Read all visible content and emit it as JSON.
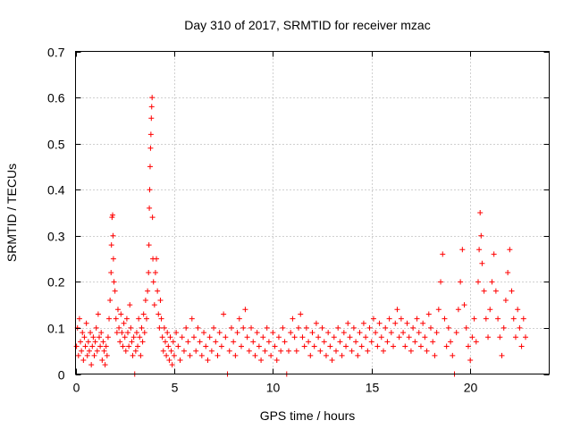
{
  "chart_data": {
    "type": "scatter",
    "title": "Day 310 of 2017, SRMTID for receiver mzac",
    "xlabel": "GPS time / hours",
    "ylabel": "SRMTID / TECUs",
    "xlim": [
      0,
      24
    ],
    "ylim": [
      0,
      0.7
    ],
    "xticks": [
      0,
      5,
      10,
      15,
      20
    ],
    "yticks": [
      0,
      0.1,
      0.2,
      0.3,
      0.4,
      0.5,
      0.6,
      0.7
    ],
    "xtick_labels": [
      "0",
      "5",
      "10",
      "15",
      "20"
    ],
    "ytick_labels": [
      "0",
      "0.1",
      "0.2",
      "0.3",
      "0.4",
      "0.5",
      "0.6",
      "0.7"
    ],
    "grid": true,
    "marker": "+",
    "color": "#ff0000",
    "series": [
      {
        "name": "SRMTID",
        "points": [
          [
            0.05,
            0.06
          ],
          [
            0.1,
            0.1
          ],
          [
            0.15,
            0.04
          ],
          [
            0.2,
            0.12
          ],
          [
            0.25,
            0.07
          ],
          [
            0.3,
            0.05
          ],
          [
            0.35,
            0.09
          ],
          [
            0.4,
            0.03
          ],
          [
            0.45,
            0.08
          ],
          [
            0.5,
            0.06
          ],
          [
            0.55,
            0.11
          ],
          [
            0.6,
            0.04
          ],
          [
            0.65,
            0.07
          ],
          [
            0.7,
            0.05
          ],
          [
            0.75,
            0.09
          ],
          [
            0.8,
            0.02
          ],
          [
            0.85,
            0.06
          ],
          [
            0.9,
            0.08
          ],
          [
            0.95,
            0.04
          ],
          [
            1.0,
            0.07
          ],
          [
            1.05,
            0.1
          ],
          [
            1.1,
            0.05
          ],
          [
            1.15,
            0.13
          ],
          [
            1.2,
            0.08
          ],
          [
            1.25,
            0.06
          ],
          [
            1.3,
            0.09
          ],
          [
            1.35,
            0.03
          ],
          [
            1.4,
            0.07
          ],
          [
            1.45,
            0.05
          ],
          [
            1.5,
            0.02
          ],
          [
            1.55,
            0.06
          ],
          [
            1.6,
            0.04
          ],
          [
            1.65,
            0.08
          ],
          [
            1.7,
            0.12
          ],
          [
            1.75,
            0.16
          ],
          [
            1.8,
            0.22
          ],
          [
            1.82,
            0.28
          ],
          [
            1.85,
            0.34
          ],
          [
            1.88,
            0.345
          ],
          [
            1.9,
            0.3
          ],
          [
            1.92,
            0.25
          ],
          [
            1.95,
            0.2
          ],
          [
            2.0,
            0.18
          ],
          [
            2.05,
            0.12
          ],
          [
            2.1,
            0.09
          ],
          [
            2.15,
            0.14
          ],
          [
            2.2,
            0.1
          ],
          [
            2.25,
            0.07
          ],
          [
            2.3,
            0.13
          ],
          [
            2.35,
            0.09
          ],
          [
            2.4,
            0.06
          ],
          [
            2.45,
            0.11
          ],
          [
            2.5,
            0.08
          ],
          [
            2.55,
            0.05
          ],
          [
            2.6,
            0.12
          ],
          [
            2.65,
            0.09
          ],
          [
            2.7,
            0.06
          ],
          [
            2.75,
            0.15
          ],
          [
            2.8,
            0.1
          ],
          [
            2.85,
            0.07
          ],
          [
            2.9,
            0.04
          ],
          [
            2.95,
            0.08
          ],
          [
            3.0,
            0.0
          ],
          [
            3.05,
            0.05
          ],
          [
            3.1,
            0.09
          ],
          [
            3.15,
            0.06
          ],
          [
            3.2,
            0.12
          ],
          [
            3.25,
            0.08
          ],
          [
            3.3,
            0.04
          ],
          [
            3.35,
            0.1
          ],
          [
            3.4,
            0.07
          ],
          [
            3.45,
            0.13
          ],
          [
            3.5,
            0.09
          ],
          [
            3.55,
            0.16
          ],
          [
            3.6,
            0.12
          ],
          [
            3.65,
            0.18
          ],
          [
            3.7,
            0.22
          ],
          [
            3.72,
            0.28
          ],
          [
            3.74,
            0.36
          ],
          [
            3.76,
            0.4
          ],
          [
            3.78,
            0.45
          ],
          [
            3.8,
            0.49
          ],
          [
            3.82,
            0.52
          ],
          [
            3.84,
            0.555
          ],
          [
            3.86,
            0.58
          ],
          [
            3.88,
            0.6
          ],
          [
            3.9,
            0.34
          ],
          [
            3.92,
            0.25
          ],
          [
            3.95,
            0.2
          ],
          [
            4.0,
            0.15
          ],
          [
            4.05,
            0.22
          ],
          [
            4.1,
            0.25
          ],
          [
            4.15,
            0.18
          ],
          [
            4.2,
            0.13
          ],
          [
            4.25,
            0.1
          ],
          [
            4.3,
            0.16
          ],
          [
            4.35,
            0.12
          ],
          [
            4.4,
            0.08
          ],
          [
            4.45,
            0.05
          ],
          [
            4.5,
            0.1
          ],
          [
            4.55,
            0.07
          ],
          [
            4.6,
            0.04
          ],
          [
            4.65,
            0.09
          ],
          [
            4.7,
            0.06
          ],
          [
            4.75,
            0.03
          ],
          [
            4.8,
            0.08
          ],
          [
            4.85,
            0.05
          ],
          [
            4.9,
            0.02
          ],
          [
            4.95,
            0.07
          ],
          [
            5.0,
            0.04
          ],
          [
            5.1,
            0.09
          ],
          [
            5.2,
            0.06
          ],
          [
            5.3,
            0.03
          ],
          [
            5.4,
            0.08
          ],
          [
            5.5,
            0.05
          ],
          [
            5.6,
            0.1
          ],
          [
            5.7,
            0.07
          ],
          [
            5.8,
            0.04
          ],
          [
            5.9,
            0.12
          ],
          [
            6.0,
            0.08
          ],
          [
            6.1,
            0.05
          ],
          [
            6.2,
            0.1
          ],
          [
            6.3,
            0.07
          ],
          [
            6.4,
            0.04
          ],
          [
            6.5,
            0.09
          ],
          [
            6.6,
            0.06
          ],
          [
            6.7,
            0.03
          ],
          [
            6.8,
            0.08
          ],
          [
            6.9,
            0.05
          ],
          [
            7.0,
            0.1
          ],
          [
            7.1,
            0.07
          ],
          [
            7.2,
            0.04
          ],
          [
            7.3,
            0.09
          ],
          [
            7.4,
            0.06
          ],
          [
            7.5,
            0.13
          ],
          [
            7.6,
            0.08
          ],
          [
            7.7,
            0.0
          ],
          [
            7.8,
            0.05
          ],
          [
            7.9,
            0.1
          ],
          [
            8.0,
            0.07
          ],
          [
            8.1,
            0.04
          ],
          [
            8.2,
            0.09
          ],
          [
            8.3,
            0.12
          ],
          [
            8.4,
            0.06
          ],
          [
            8.5,
            0.1
          ],
          [
            8.6,
            0.14
          ],
          [
            8.7,
            0.08
          ],
          [
            8.8,
            0.05
          ],
          [
            8.9,
            0.1
          ],
          [
            9.0,
            0.07
          ],
          [
            9.1,
            0.04
          ],
          [
            9.2,
            0.09
          ],
          [
            9.3,
            0.06
          ],
          [
            9.4,
            0.03
          ],
          [
            9.5,
            0.08
          ],
          [
            9.6,
            0.05
          ],
          [
            9.7,
            0.1
          ],
          [
            9.8,
            0.07
          ],
          [
            9.9,
            0.04
          ],
          [
            10.0,
            0.09
          ],
          [
            10.1,
            0.06
          ],
          [
            10.2,
            0.03
          ],
          [
            10.3,
            0.08
          ],
          [
            10.4,
            0.05
          ],
          [
            10.5,
            0.1
          ],
          [
            10.6,
            0.07
          ],
          [
            10.7,
            0.0
          ],
          [
            10.8,
            0.05
          ],
          [
            10.9,
            0.09
          ],
          [
            11.0,
            0.12
          ],
          [
            11.1,
            0.08
          ],
          [
            11.2,
            0.05
          ],
          [
            11.3,
            0.1
          ],
          [
            11.4,
            0.13
          ],
          [
            11.5,
            0.08
          ],
          [
            11.6,
            0.06
          ],
          [
            11.7,
            0.1
          ],
          [
            11.8,
            0.07
          ],
          [
            11.9,
            0.04
          ],
          [
            12.0,
            0.09
          ],
          [
            12.1,
            0.06
          ],
          [
            12.2,
            0.11
          ],
          [
            12.3,
            0.08
          ],
          [
            12.4,
            0.05
          ],
          [
            12.5,
            0.1
          ],
          [
            12.6,
            0.07
          ],
          [
            12.7,
            0.04
          ],
          [
            12.8,
            0.09
          ],
          [
            12.9,
            0.06
          ],
          [
            13.0,
            0.03
          ],
          [
            13.1,
            0.08
          ],
          [
            13.2,
            0.05
          ],
          [
            13.3,
            0.1
          ],
          [
            13.4,
            0.07
          ],
          [
            13.5,
            0.04
          ],
          [
            13.6,
            0.09
          ],
          [
            13.7,
            0.06
          ],
          [
            13.8,
            0.11
          ],
          [
            13.9,
            0.08
          ],
          [
            14.0,
            0.05
          ],
          [
            14.1,
            0.1
          ],
          [
            14.2,
            0.07
          ],
          [
            14.3,
            0.04
          ],
          [
            14.4,
            0.09
          ],
          [
            14.5,
            0.06
          ],
          [
            14.6,
            0.11
          ],
          [
            14.7,
            0.08
          ],
          [
            14.8,
            0.05
          ],
          [
            14.9,
            0.1
          ],
          [
            15.0,
            0.07
          ],
          [
            15.1,
            0.12
          ],
          [
            15.2,
            0.09
          ],
          [
            15.3,
            0.06
          ],
          [
            15.4,
            0.11
          ],
          [
            15.5,
            0.08
          ],
          [
            15.6,
            0.05
          ],
          [
            15.7,
            0.1
          ],
          [
            15.8,
            0.07
          ],
          [
            15.9,
            0.12
          ],
          [
            16.0,
            0.09
          ],
          [
            16.1,
            0.06
          ],
          [
            16.2,
            0.11
          ],
          [
            16.3,
            0.14
          ],
          [
            16.4,
            0.08
          ],
          [
            16.5,
            0.12
          ],
          [
            16.6,
            0.09
          ],
          [
            16.7,
            0.06
          ],
          [
            16.8,
            0.11
          ],
          [
            16.9,
            0.08
          ],
          [
            17.0,
            0.05
          ],
          [
            17.1,
            0.1
          ],
          [
            17.2,
            0.07
          ],
          [
            17.3,
            0.12
          ],
          [
            17.4,
            0.09
          ],
          [
            17.5,
            0.06
          ],
          [
            17.6,
            0.11
          ],
          [
            17.7,
            0.08
          ],
          [
            17.8,
            0.05
          ],
          [
            17.9,
            0.13
          ],
          [
            18.0,
            0.1
          ],
          [
            18.1,
            0.07
          ],
          [
            18.2,
            0.04
          ],
          [
            18.3,
            0.09
          ],
          [
            18.4,
            0.14
          ],
          [
            18.5,
            0.2
          ],
          [
            18.6,
            0.26
          ],
          [
            18.7,
            0.12
          ],
          [
            18.8,
            0.06
          ],
          [
            18.9,
            0.1
          ],
          [
            19.0,
            0.07
          ],
          [
            19.1,
            0.04
          ],
          [
            19.2,
            0.0
          ],
          [
            19.3,
            0.09
          ],
          [
            19.4,
            0.14
          ],
          [
            19.5,
            0.2
          ],
          [
            19.6,
            0.27
          ],
          [
            19.7,
            0.15
          ],
          [
            19.8,
            0.1
          ],
          [
            19.9,
            0.06
          ],
          [
            20.0,
            0.03
          ],
          [
            20.1,
            0.08
          ],
          [
            20.2,
            0.12
          ],
          [
            20.3,
            0.07
          ],
          [
            20.4,
            0.2
          ],
          [
            20.45,
            0.27
          ],
          [
            20.5,
            0.35
          ],
          [
            20.55,
            0.3
          ],
          [
            20.6,
            0.24
          ],
          [
            20.7,
            0.18
          ],
          [
            20.8,
            0.12
          ],
          [
            20.9,
            0.08
          ],
          [
            21.0,
            0.14
          ],
          [
            21.1,
            0.2
          ],
          [
            21.2,
            0.26
          ],
          [
            21.3,
            0.18
          ],
          [
            21.4,
            0.12
          ],
          [
            21.5,
            0.08
          ],
          [
            21.6,
            0.04
          ],
          [
            21.7,
            0.1
          ],
          [
            21.8,
            0.16
          ],
          [
            21.9,
            0.22
          ],
          [
            22.0,
            0.27
          ],
          [
            22.1,
            0.18
          ],
          [
            22.2,
            0.12
          ],
          [
            22.3,
            0.08
          ],
          [
            22.4,
            0.14
          ],
          [
            22.5,
            0.1
          ],
          [
            22.6,
            0.06
          ],
          [
            22.7,
            0.12
          ],
          [
            22.8,
            0.08
          ]
        ]
      }
    ]
  }
}
